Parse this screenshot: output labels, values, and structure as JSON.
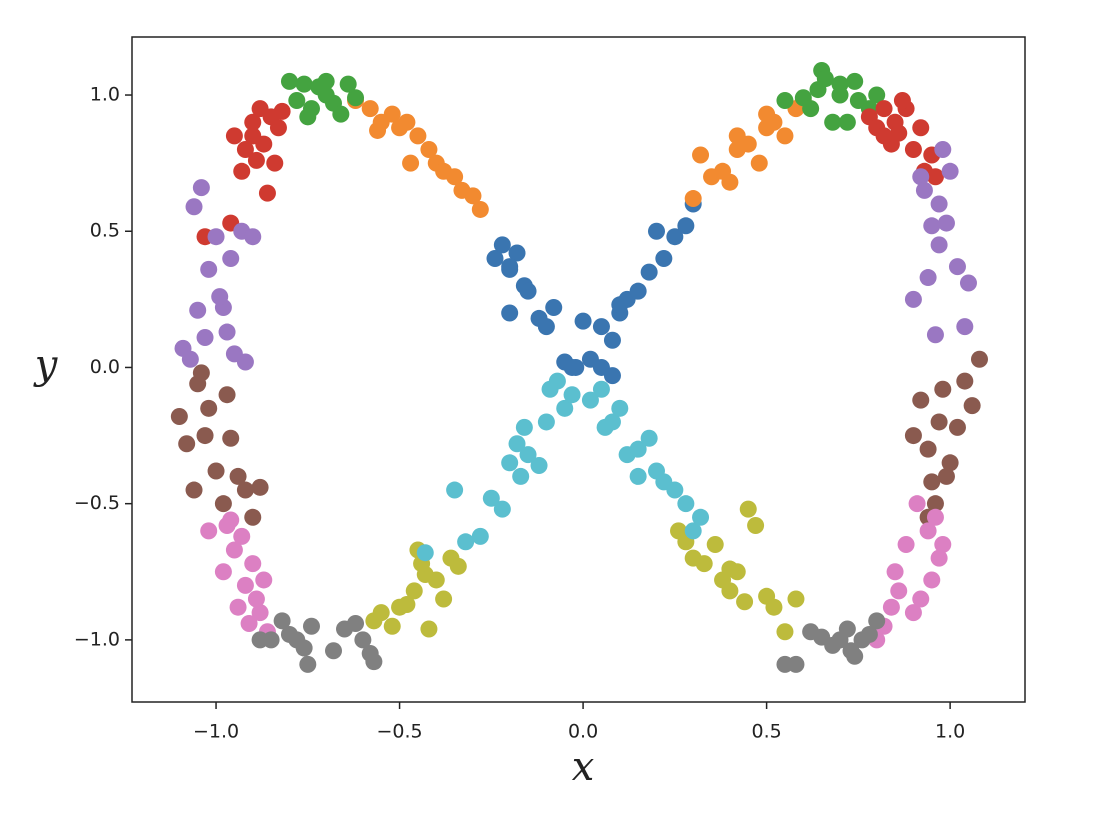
{
  "chart_data": {
    "type": "scatter",
    "x_label": "x",
    "y_label": "y",
    "xlim": [
      -1.229,
      1.204
    ],
    "ylim": [
      -1.228,
      1.213
    ],
    "xticks": [
      {
        "value": -1.0,
        "label": "−1.0"
      },
      {
        "value": -0.5,
        "label": "−0.5"
      },
      {
        "value": 0.0,
        "label": "0.0"
      },
      0.5,
      {
        "value": 1.0,
        "label": "1.0"
      }
    ],
    "yticks": [
      {
        "value": -1.0,
        "label": "−1.0"
      },
      {
        "value": -0.5,
        "label": "−0.5"
      },
      {
        "value": 0.0,
        "label": "0.0"
      },
      0.5,
      {
        "value": 1.0,
        "label": "1.0"
      }
    ],
    "series": [
      {
        "color": "#3a75b0",
        "x": [
          -0.24,
          -0.22,
          -0.2,
          -0.18,
          -0.16,
          -0.2,
          -0.15,
          -0.12,
          -0.1,
          -0.08,
          -0.05,
          -0.02,
          0.02,
          0.05,
          0.08,
          0.1,
          0.12,
          0.15,
          0.18,
          0.2,
          0.22,
          0.25,
          0.28,
          0.3,
          0.05,
          0.0,
          -0.03,
          0.08,
          0.1,
          -0.2
        ],
        "values": [
          0.4,
          0.45,
          0.36,
          0.42,
          0.3,
          0.2,
          0.28,
          0.18,
          0.15,
          0.22,
          0.02,
          0.0,
          0.03,
          0.0,
          -0.03,
          0.2,
          0.25,
          0.28,
          0.35,
          0.5,
          0.4,
          0.48,
          0.52,
          0.6,
          0.15,
          0.17,
          0.0,
          0.1,
          0.23,
          0.37
        ]
      },
      {
        "color": "#f28a30",
        "x": [
          -0.62,
          -0.58,
          -0.55,
          -0.52,
          -0.5,
          -0.48,
          -0.45,
          -0.42,
          -0.4,
          -0.38,
          -0.35,
          -0.33,
          -0.3,
          -0.28,
          -0.56,
          -0.47,
          0.3,
          0.32,
          0.35,
          0.38,
          0.4,
          0.42,
          0.45,
          0.48,
          0.5,
          0.52,
          0.55,
          0.58,
          0.6,
          0.42,
          0.5
        ],
        "values": [
          0.98,
          0.95,
          0.9,
          0.93,
          0.88,
          0.9,
          0.85,
          0.8,
          0.75,
          0.72,
          0.7,
          0.65,
          0.63,
          0.58,
          0.87,
          0.75,
          0.62,
          0.78,
          0.7,
          0.72,
          0.68,
          0.8,
          0.82,
          0.75,
          0.88,
          0.9,
          0.85,
          0.95,
          0.98,
          0.85,
          0.93
        ]
      },
      {
        "color": "#44a340",
        "x": [
          -0.8,
          -0.78,
          -0.76,
          -0.74,
          -0.72,
          -0.7,
          -0.68,
          -0.66,
          -0.64,
          -0.62,
          -0.75,
          -0.7,
          0.55,
          0.6,
          0.62,
          0.64,
          0.65,
          0.66,
          0.68,
          0.7,
          0.72,
          0.74,
          0.75,
          0.78,
          0.8,
          0.7
        ],
        "values": [
          1.05,
          0.98,
          1.04,
          0.95,
          1.03,
          1.0,
          0.97,
          0.93,
          1.04,
          0.99,
          0.92,
          1.05,
          0.98,
          0.99,
          0.95,
          1.02,
          1.09,
          1.06,
          0.9,
          1.0,
          0.9,
          1.05,
          0.98,
          0.95,
          1.0,
          1.04
        ]
      },
      {
        "color": "#cf3a30",
        "x": [
          -0.95,
          -0.93,
          -0.92,
          -0.9,
          -0.89,
          -0.88,
          -0.87,
          -0.86,
          -0.85,
          -0.84,
          -0.83,
          -0.82,
          -0.96,
          -1.03,
          -0.9,
          0.78,
          0.8,
          0.82,
          0.84,
          0.85,
          0.86,
          0.88,
          0.9,
          0.92,
          0.93,
          0.95,
          0.96,
          0.87,
          0.82
        ],
        "values": [
          0.85,
          0.72,
          0.8,
          0.9,
          0.76,
          0.95,
          0.82,
          0.64,
          0.92,
          0.75,
          0.88,
          0.94,
          0.53,
          0.48,
          0.85,
          0.92,
          0.88,
          0.95,
          0.82,
          0.9,
          0.86,
          0.95,
          0.8,
          0.88,
          0.72,
          0.78,
          0.7,
          0.98,
          0.85
        ]
      },
      {
        "color": "#9a77c2",
        "x": [
          -1.09,
          -1.07,
          -1.05,
          -1.04,
          -1.02,
          -1.0,
          -0.98,
          -0.97,
          -0.96,
          -0.95,
          -0.93,
          -0.92,
          -0.9,
          -1.06,
          -1.03,
          -0.99,
          0.9,
          0.92,
          0.94,
          0.95,
          0.96,
          0.97,
          0.98,
          0.99,
          1.0,
          1.02,
          1.04,
          0.93,
          0.97,
          1.05
        ],
        "values": [
          0.07,
          0.03,
          0.21,
          0.66,
          0.36,
          0.48,
          0.22,
          0.13,
          0.4,
          0.05,
          0.5,
          0.02,
          0.48,
          0.59,
          0.11,
          0.26,
          0.25,
          0.7,
          0.33,
          0.52,
          0.12,
          0.6,
          0.8,
          0.53,
          0.72,
          0.37,
          0.15,
          0.65,
          0.45,
          0.31
        ]
      },
      {
        "color": "#8a5a4f",
        "x": [
          -1.1,
          -1.08,
          -1.06,
          -1.05,
          -1.03,
          -1.02,
          -1.0,
          -0.98,
          -0.96,
          -0.94,
          -0.92,
          -0.9,
          -0.88,
          -1.04,
          -0.97,
          0.9,
          0.92,
          0.94,
          0.95,
          0.96,
          0.97,
          0.98,
          1.0,
          1.02,
          1.04,
          1.06,
          1.08,
          0.94,
          0.99
        ],
        "values": [
          -0.18,
          -0.28,
          -0.45,
          -0.06,
          -0.25,
          -0.15,
          -0.38,
          -0.5,
          -0.26,
          -0.4,
          -0.45,
          -0.55,
          -0.44,
          -0.02,
          -0.1,
          -0.25,
          -0.12,
          -0.3,
          -0.42,
          -0.5,
          -0.2,
          -0.08,
          -0.35,
          -0.22,
          -0.05,
          -0.14,
          0.03,
          -0.55,
          -0.4
        ]
      },
      {
        "color": "#dc80c3",
        "x": [
          -1.02,
          -0.98,
          -0.97,
          -0.95,
          -0.94,
          -0.93,
          -0.92,
          -0.91,
          -0.9,
          -0.88,
          -0.87,
          -0.86,
          -0.96,
          -0.89,
          0.8,
          0.82,
          0.84,
          0.85,
          0.86,
          0.88,
          0.9,
          0.92,
          0.94,
          0.95,
          0.96,
          0.97,
          0.98,
          0.91
        ],
        "values": [
          -0.6,
          -0.75,
          -0.58,
          -0.67,
          -0.88,
          -0.62,
          -0.8,
          -0.94,
          -0.72,
          -0.9,
          -0.78,
          -0.97,
          -0.56,
          -0.85,
          -1.0,
          -0.95,
          -0.88,
          -0.75,
          -0.82,
          -0.65,
          -0.9,
          -0.85,
          -0.6,
          -0.78,
          -0.55,
          -0.7,
          -0.65,
          -0.5
        ]
      },
      {
        "color": "#808080",
        "x": [
          -0.88,
          -0.85,
          -0.82,
          -0.8,
          -0.78,
          -0.76,
          -0.75,
          -0.74,
          -0.68,
          -0.65,
          -0.62,
          -0.6,
          -0.58,
          -0.57,
          0.55,
          0.58,
          0.62,
          0.65,
          0.68,
          0.7,
          0.72,
          0.74,
          0.76,
          0.78,
          0.8,
          0.73
        ],
        "values": [
          -1.0,
          -1.0,
          -0.93,
          -0.98,
          -1.0,
          -1.03,
          -1.09,
          -0.95,
          -1.04,
          -0.96,
          -0.94,
          -1.0,
          -1.05,
          -1.08,
          -1.09,
          -1.09,
          -0.97,
          -0.99,
          -1.02,
          -1.0,
          -0.96,
          -1.06,
          -1.0,
          -0.98,
          -0.93,
          -1.04
        ]
      },
      {
        "color": "#bdbb3c",
        "x": [
          -0.57,
          -0.55,
          -0.52,
          -0.5,
          -0.48,
          -0.46,
          -0.45,
          -0.43,
          -0.42,
          -0.4,
          -0.38,
          -0.36,
          -0.34,
          -0.44,
          0.26,
          0.28,
          0.3,
          0.33,
          0.36,
          0.38,
          0.4,
          0.42,
          0.44,
          0.45,
          0.47,
          0.5,
          0.52,
          0.55,
          0.58,
          0.4
        ],
        "values": [
          -0.93,
          -0.9,
          -0.95,
          -0.88,
          -0.87,
          -0.82,
          -0.67,
          -0.76,
          -0.96,
          -0.78,
          -0.85,
          -0.7,
          -0.73,
          -0.72,
          -0.6,
          -0.64,
          -0.7,
          -0.72,
          -0.65,
          -0.78,
          -0.82,
          -0.75,
          -0.86,
          -0.52,
          -0.58,
          -0.84,
          -0.88,
          -0.97,
          -0.85,
          -0.74
        ]
      },
      {
        "color": "#5bbfcf",
        "x": [
          -0.35,
          -0.32,
          -0.28,
          -0.25,
          -0.22,
          -0.2,
          -0.18,
          -0.17,
          -0.16,
          -0.15,
          -0.12,
          -0.1,
          -0.09,
          -0.07,
          -0.05,
          -0.03,
          0.02,
          0.05,
          0.08,
          0.1,
          0.12,
          0.15,
          0.18,
          0.2,
          0.22,
          0.25,
          0.28,
          0.3,
          0.32,
          0.06,
          0.15,
          -0.43
        ],
        "values": [
          -0.45,
          -0.64,
          -0.62,
          -0.48,
          -0.52,
          -0.35,
          -0.28,
          -0.4,
          -0.22,
          -0.32,
          -0.36,
          -0.2,
          -0.08,
          -0.05,
          -0.15,
          -0.1,
          -0.12,
          -0.08,
          -0.2,
          -0.15,
          -0.32,
          -0.3,
          -0.26,
          -0.38,
          -0.42,
          -0.45,
          -0.5,
          -0.6,
          -0.55,
          -0.22,
          -0.4,
          -0.68
        ]
      }
    ]
  }
}
